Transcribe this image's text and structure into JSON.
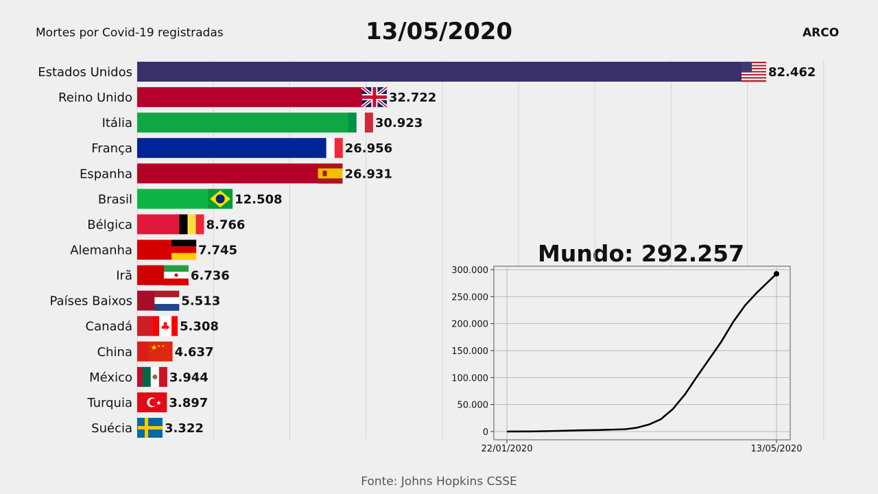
{
  "header": {
    "subtitle": "Mortes por Covid-19 registradas",
    "date": "13/05/2020",
    "brand": "ARCO"
  },
  "footer": {
    "source": "Fonte: Johns Hopkins CSSE"
  },
  "world": {
    "title": "Mundo: 292.257"
  },
  "chart_data": [
    {
      "type": "bar",
      "orientation": "horizontal",
      "xlim": [
        0,
        90000
      ],
      "grid": true,
      "categories": [
        "Estados Unidos",
        "Reino Unido",
        "Itália",
        "França",
        "Espanha",
        "Brasil",
        "Bélgica",
        "Alemanha",
        "Irã",
        "Países Baixos",
        "Canadá",
        "China",
        "México",
        "Turquia",
        "Suécia"
      ],
      "values": [
        82462,
        32722,
        30923,
        26956,
        26931,
        12508,
        8766,
        7745,
        6736,
        5513,
        5308,
        4637,
        3944,
        3897,
        3322
      ],
      "value_labels": [
        "82.462",
        "32.722",
        "30.923",
        "26.956",
        "26.931",
        "12.508",
        "8.766",
        "7.745",
        "6.736",
        "5.513",
        "5.308",
        "4.637",
        "3.944",
        "3.897",
        "3.322"
      ],
      "colors": [
        "#37306b",
        "#b5002b",
        "#0fa746",
        "#002395",
        "#b40026",
        "#0db544",
        "#e0173a",
        "#d40000",
        "#d00000",
        "#a50f2a",
        "#cf1f26",
        "#d81e1a",
        "#c30a30",
        "#e00a17",
        "#006aa7"
      ],
      "flags": [
        "us-flag",
        "uk-flag",
        "italy-flag",
        "france-flag",
        "spain-flag",
        "brazil-flag",
        "belgium-flag",
        "germany-flag",
        "iran-flag",
        "netherlands-flag",
        "canada-flag",
        "china-flag",
        "mexico-flag",
        "turkey-flag",
        "sweden-flag"
      ]
    },
    {
      "type": "line",
      "x": [
        "22/01/2020",
        "01/02/2020",
        "11/02/2020",
        "21/02/2020",
        "01/03/2020",
        "11/03/2020",
        "16/03/2020",
        "21/03/2020",
        "26/03/2020",
        "31/03/2020",
        "05/04/2020",
        "10/04/2020",
        "15/04/2020",
        "20/04/2020",
        "25/04/2020",
        "30/04/2020",
        "05/05/2020",
        "13/05/2020"
      ],
      "y": [
        17,
        259,
        1113,
        2247,
        3000,
        4300,
        7100,
        13000,
        23000,
        42000,
        69000,
        102000,
        134000,
        166000,
        203000,
        234000,
        258000,
        292257
      ],
      "xtick_labels": [
        "22/01/2020",
        "13/05/2020"
      ],
      "ytick_labels": [
        "0",
        "50.000",
        "100.000",
        "150.000",
        "200.000",
        "250.000",
        "300.000"
      ],
      "ylim": [
        -10000,
        310000
      ],
      "grid": true,
      "color": "#000000"
    }
  ]
}
